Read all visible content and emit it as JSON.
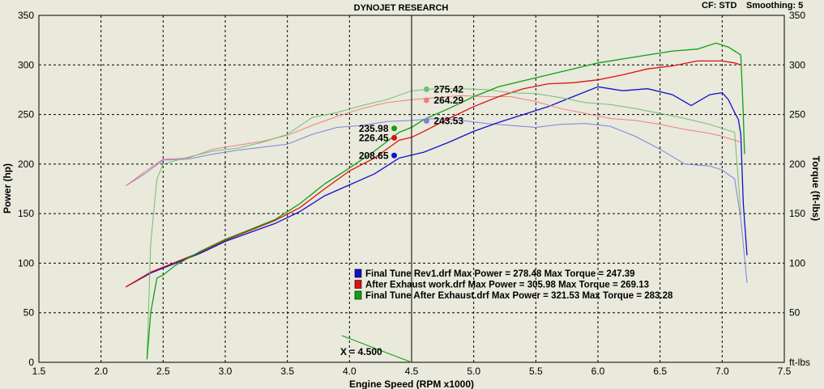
{
  "header": {
    "title": "DYNOJET RESEARCH",
    "cf_label": "CF: STD",
    "smoothing_label": "Smoothing: 5"
  },
  "chart_data": {
    "type": "line",
    "xlabel": "Engine Speed (RPM x1000)",
    "ylabel_left": "Power (hp)",
    "ylabel_right": "Torque (ft-lbs)",
    "xlim": [
      1.5,
      7.5
    ],
    "ylim_left": [
      0,
      350
    ],
    "ylim_right": [
      0,
      350
    ],
    "x_ticks": [
      "1.5",
      "2.0",
      "2.5",
      "3.0",
      "3.5",
      "4.0",
      "4.5",
      "5.0",
      "5.5",
      "6.0",
      "6.5",
      "7.0",
      "7.5"
    ],
    "y_ticks_left": [
      "0",
      "50",
      "100",
      "150",
      "200",
      "250",
      "300",
      "350"
    ],
    "y_ticks_right": [
      "ft-lbs",
      "50",
      "100",
      "150",
      "200",
      "250",
      "300",
      "350"
    ],
    "grid": true,
    "cursor": {
      "x": 4.5,
      "label": "X = 4.500"
    },
    "series": [
      {
        "color": "#1010d0",
        "torque_color": "#8080e0",
        "power": [
          [
            2.2,
            76
          ],
          [
            2.4,
            90
          ],
          [
            2.6,
            100
          ],
          [
            2.8,
            110
          ],
          [
            3.0,
            122
          ],
          [
            3.2,
            131
          ],
          [
            3.4,
            140
          ],
          [
            3.6,
            152
          ],
          [
            3.8,
            168
          ],
          [
            4.0,
            179
          ],
          [
            4.2,
            190
          ],
          [
            4.4,
            206
          ],
          [
            4.5,
            209
          ],
          [
            4.6,
            212
          ],
          [
            4.8,
            222
          ],
          [
            5.0,
            233
          ],
          [
            5.2,
            242
          ],
          [
            5.4,
            250
          ],
          [
            5.6,
            258
          ],
          [
            5.8,
            268
          ],
          [
            6.0,
            278
          ],
          [
            6.2,
            274
          ],
          [
            6.4,
            276
          ],
          [
            6.6,
            270
          ],
          [
            6.75,
            259
          ],
          [
            6.9,
            270
          ],
          [
            7.0,
            272
          ],
          [
            7.05,
            265
          ],
          [
            7.1,
            252
          ],
          [
            7.13,
            245
          ],
          [
            7.15,
            230
          ],
          [
            7.17,
            160
          ],
          [
            7.2,
            108
          ]
        ],
        "torque": [
          [
            2.2,
            178
          ],
          [
            2.35,
            190
          ],
          [
            2.5,
            204
          ],
          [
            2.7,
            205
          ],
          [
            2.9,
            210
          ],
          [
            3.1,
            214
          ],
          [
            3.3,
            217
          ],
          [
            3.5,
            220
          ],
          [
            3.7,
            230
          ],
          [
            3.9,
            237
          ],
          [
            4.1,
            239
          ],
          [
            4.3,
            243
          ],
          [
            4.5,
            244
          ],
          [
            4.7,
            246
          ],
          [
            4.9,
            244
          ],
          [
            5.1,
            241
          ],
          [
            5.3,
            239
          ],
          [
            5.5,
            237
          ],
          [
            5.7,
            240
          ],
          [
            5.9,
            241
          ],
          [
            6.1,
            238
          ],
          [
            6.3,
            228
          ],
          [
            6.5,
            215
          ],
          [
            6.7,
            200
          ],
          [
            6.9,
            198
          ],
          [
            7.0,
            194
          ],
          [
            7.1,
            185
          ],
          [
            7.15,
            145
          ],
          [
            7.2,
            80
          ]
        ],
        "legend": "Final Tune Rev1.drf Max Power = 278.48      Max Torque = 247.39",
        "cursor_power": "208.65",
        "cursor_torque": "243.53"
      },
      {
        "color": "#e01010",
        "torque_color": "#f08080",
        "power": [
          [
            2.2,
            76
          ],
          [
            2.4,
            91
          ],
          [
            2.6,
            101
          ],
          [
            2.8,
            111
          ],
          [
            3.0,
            123
          ],
          [
            3.2,
            133
          ],
          [
            3.4,
            143
          ],
          [
            3.6,
            156
          ],
          [
            3.8,
            175
          ],
          [
            4.0,
            193
          ],
          [
            4.2,
            206
          ],
          [
            4.4,
            224
          ],
          [
            4.5,
            227
          ],
          [
            4.6,
            233
          ],
          [
            4.8,
            246
          ],
          [
            5.0,
            258
          ],
          [
            5.2,
            268
          ],
          [
            5.4,
            276
          ],
          [
            5.6,
            281
          ],
          [
            5.8,
            282
          ],
          [
            6.0,
            285
          ],
          [
            6.2,
            290
          ],
          [
            6.4,
            296
          ],
          [
            6.6,
            299
          ],
          [
            6.8,
            304
          ],
          [
            7.0,
            304
          ],
          [
            7.1,
            302
          ],
          [
            7.15,
            300
          ]
        ],
        "torque": [
          [
            2.2,
            178
          ],
          [
            2.35,
            192
          ],
          [
            2.5,
            205
          ],
          [
            2.7,
            206
          ],
          [
            2.9,
            215
          ],
          [
            3.1,
            219
          ],
          [
            3.3,
            223
          ],
          [
            3.5,
            229
          ],
          [
            3.7,
            239
          ],
          [
            3.9,
            248
          ],
          [
            4.1,
            256
          ],
          [
            4.3,
            262
          ],
          [
            4.5,
            265
          ],
          [
            4.7,
            267
          ],
          [
            4.9,
            269
          ],
          [
            5.1,
            268
          ],
          [
            5.3,
            268
          ],
          [
            5.5,
            263
          ],
          [
            5.7,
            256
          ],
          [
            5.9,
            251
          ],
          [
            6.1,
            246
          ],
          [
            6.3,
            244
          ],
          [
            6.5,
            240
          ],
          [
            6.7,
            235
          ],
          [
            6.9,
            231
          ],
          [
            7.0,
            228
          ],
          [
            7.15,
            222
          ]
        ],
        "legend": "After Exhaust work.drf Max Power = 305.98      Max Torque = 269.13",
        "cursor_power": "226.45",
        "cursor_torque": "264.29"
      },
      {
        "color": "#10a010",
        "torque_color": "#70c070",
        "power": [
          [
            2.37,
            3
          ],
          [
            2.4,
            50
          ],
          [
            2.45,
            85
          ],
          [
            2.5,
            88
          ],
          [
            2.6,
            98
          ],
          [
            2.8,
            112
          ],
          [
            3.0,
            124
          ],
          [
            3.2,
            134
          ],
          [
            3.4,
            144
          ],
          [
            3.6,
            160
          ],
          [
            3.8,
            180
          ],
          [
            4.0,
            196
          ],
          [
            4.2,
            213
          ],
          [
            4.4,
            232
          ],
          [
            4.5,
            237
          ],
          [
            4.6,
            245
          ],
          [
            4.8,
            256
          ],
          [
            5.0,
            268
          ],
          [
            5.2,
            278
          ],
          [
            5.4,
            284
          ],
          [
            5.6,
            290
          ],
          [
            5.8,
            296
          ],
          [
            6.0,
            302
          ],
          [
            6.2,
            306
          ],
          [
            6.4,
            310
          ],
          [
            6.6,
            314
          ],
          [
            6.8,
            316
          ],
          [
            6.95,
            322
          ],
          [
            7.05,
            318
          ],
          [
            7.1,
            314
          ],
          [
            7.15,
            310
          ],
          [
            7.17,
            250
          ],
          [
            7.18,
            210
          ]
        ],
        "torque": [
          [
            2.37,
            3
          ],
          [
            2.4,
            120
          ],
          [
            2.45,
            185
          ],
          [
            2.5,
            200
          ],
          [
            2.7,
            207
          ],
          [
            2.9,
            213
          ],
          [
            3.1,
            216
          ],
          [
            3.3,
            222
          ],
          [
            3.5,
            230
          ],
          [
            3.7,
            247
          ],
          [
            3.9,
            252
          ],
          [
            4.1,
            259
          ],
          [
            4.3,
            265
          ],
          [
            4.5,
            274
          ],
          [
            4.7,
            276
          ],
          [
            4.9,
            276
          ],
          [
            5.1,
            275
          ],
          [
            5.3,
            272
          ],
          [
            5.5,
            271
          ],
          [
            5.7,
            267
          ],
          [
            5.9,
            262
          ],
          [
            6.1,
            260
          ],
          [
            6.3,
            256
          ],
          [
            6.5,
            251
          ],
          [
            6.7,
            246
          ],
          [
            6.9,
            240
          ],
          [
            7.0,
            236
          ],
          [
            7.1,
            232
          ],
          [
            7.15,
            150
          ]
        ],
        "legend": "Final Tune After Exhaust.drf Max Power = 321.53      Max Torque = 283.28",
        "cursor_power": "235.98",
        "cursor_torque": "275.42"
      }
    ]
  }
}
